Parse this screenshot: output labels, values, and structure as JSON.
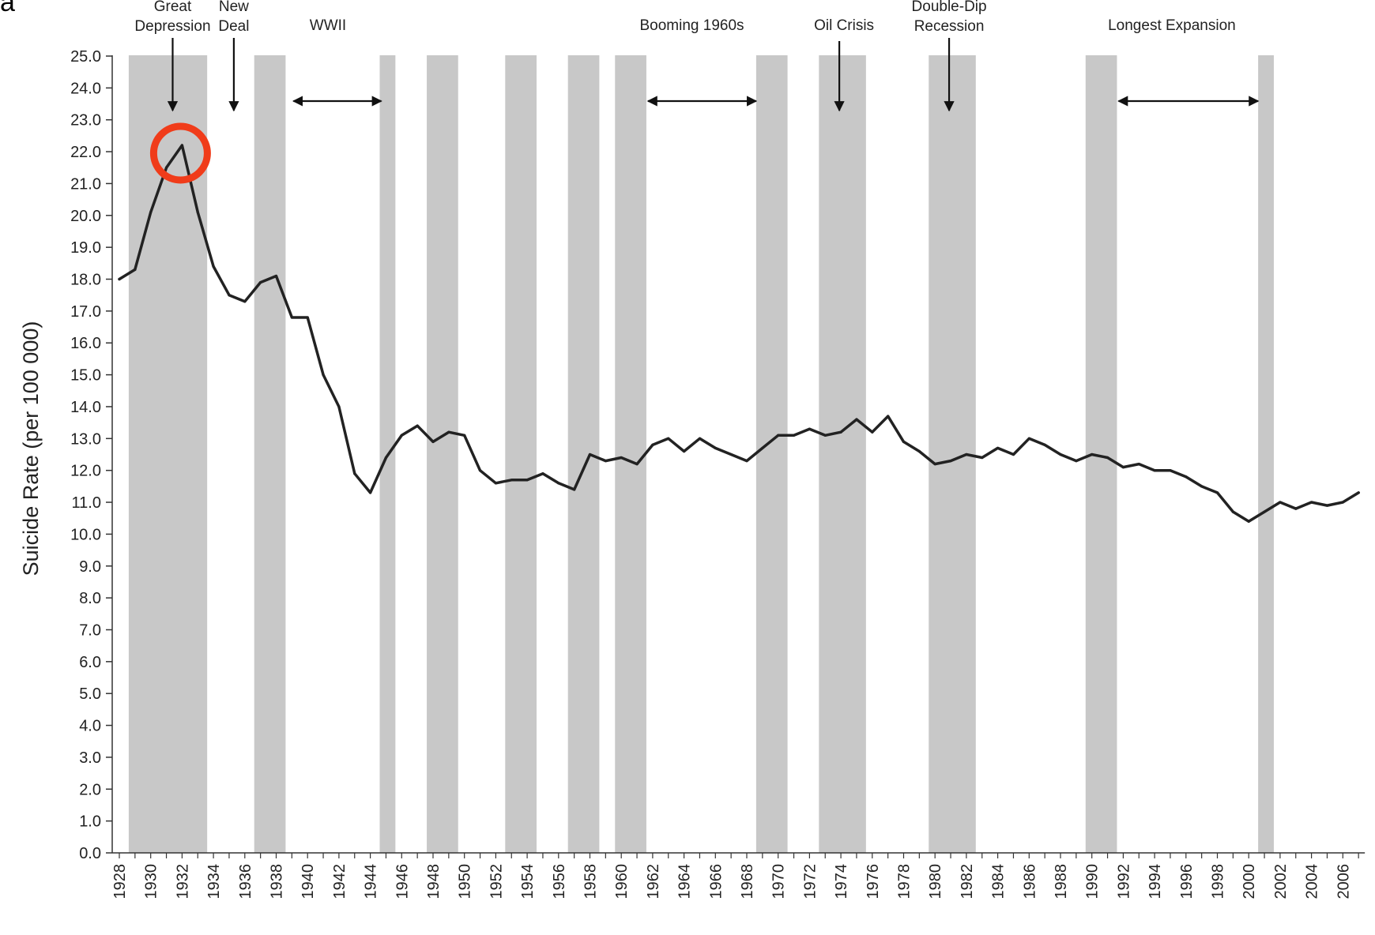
{
  "panel_label": "a",
  "chart_data": {
    "type": "line",
    "title": "",
    "xlabel": "",
    "ylabel": "Suicide Rate (per 100 000)",
    "xlim": [
      1928,
      2007
    ],
    "ylim": [
      0,
      25
    ],
    "y_ticks": [
      "0.0",
      "1.0",
      "2.0",
      "3.0",
      "4.0",
      "5.0",
      "6.0",
      "7.0",
      "8.0",
      "9.0",
      "10.0",
      "11.0",
      "12.0",
      "13.0",
      "14.0",
      "15.0",
      "16.0",
      "17.0",
      "18.0",
      "19.0",
      "20.0",
      "21.0",
      "22.0",
      "23.0",
      "24.0",
      "25.0"
    ],
    "x_ticks": [
      "1928",
      "1930",
      "1932",
      "1934",
      "1936",
      "1938",
      "1940",
      "1942",
      "1944",
      "1946",
      "1948",
      "1950",
      "1952",
      "1954",
      "1956",
      "1958",
      "1960",
      "1962",
      "1964",
      "1966",
      "1968",
      "1970",
      "1972",
      "1974",
      "1976",
      "1978",
      "1980",
      "1982",
      "1984",
      "1986",
      "1988",
      "1990",
      "1992",
      "1994",
      "1996",
      "1998",
      "2000",
      "2002",
      "2004",
      "2006"
    ],
    "grid": false,
    "line_color": "#222222",
    "recession_color": "#c8c8c8",
    "highlight_color": "#f03c1a",
    "recessions": [
      [
        1928.6,
        1933.6
      ],
      [
        1936.6,
        1938.6
      ],
      [
        1944.6,
        1945.6
      ],
      [
        1947.6,
        1949.6
      ],
      [
        1952.6,
        1954.6
      ],
      [
        1956.6,
        1958.6
      ],
      [
        1959.6,
        1961.6
      ],
      [
        1968.6,
        1970.6
      ],
      [
        1972.6,
        1975.6
      ],
      [
        1979.6,
        1982.6
      ],
      [
        1989.6,
        1991.6
      ],
      [
        2000.6,
        2001.6
      ]
    ],
    "series": [
      {
        "x": [
          1928,
          1929,
          1930,
          1931,
          1932,
          1933,
          1934,
          1935,
          1936,
          1937,
          1938,
          1939,
          1940,
          1941,
          1942,
          1943,
          1944,
          1945,
          1946,
          1947,
          1948,
          1949,
          1950,
          1951,
          1952,
          1953,
          1954,
          1955,
          1956,
          1957,
          1958,
          1959,
          1960,
          1961,
          1962,
          1963,
          1964,
          1965,
          1966,
          1967,
          1968,
          1969,
          1970,
          1971,
          1972,
          1973,
          1974,
          1975,
          1976,
          1977,
          1978,
          1979,
          1980,
          1981,
          1982,
          1983,
          1984,
          1985,
          1986,
          1987,
          1988,
          1989,
          1990,
          1991,
          1992,
          1993,
          1994,
          1995,
          1996,
          1997,
          1998,
          1999,
          2000,
          2001,
          2002,
          2003,
          2004,
          2005,
          2006,
          2007
        ],
        "values": [
          18.0,
          18.3,
          20.1,
          21.5,
          22.2,
          20.1,
          18.4,
          17.5,
          17.3,
          17.9,
          18.1,
          16.8,
          16.8,
          15.0,
          14.0,
          11.9,
          11.3,
          12.4,
          13.1,
          13.4,
          12.9,
          13.2,
          13.1,
          12.0,
          11.6,
          11.7,
          11.7,
          11.9,
          11.6,
          11.4,
          12.5,
          12.3,
          12.4,
          12.2,
          12.8,
          13.0,
          12.6,
          13.0,
          12.7,
          12.5,
          12.3,
          12.7,
          13.1,
          13.1,
          13.3,
          13.1,
          13.2,
          13.6,
          13.2,
          13.7,
          12.9,
          12.6,
          12.2,
          12.3,
          12.5,
          12.4,
          12.7,
          12.5,
          13.0,
          12.8,
          12.5,
          12.3,
          12.5,
          12.4,
          12.1,
          12.2,
          12.0,
          12.0,
          11.8,
          11.5,
          11.3,
          10.7,
          10.4,
          10.7,
          11.0,
          10.8,
          11.0,
          10.9,
          11.0,
          11.3
        ]
      }
    ],
    "highlight_point": [
      1932,
      22.2
    ],
    "annotations": [
      {
        "lines": [
          "Great",
          "Depression"
        ],
        "text_x": 1931.4,
        "arrow": "down",
        "ax": 1931.4
      },
      {
        "lines": [
          "New",
          "Deal"
        ],
        "text_x": 1935.3,
        "arrow": "down",
        "ax": 1935.3
      },
      {
        "lines": [
          "WWII"
        ],
        "text_x": 1941.3,
        "arrow": "double",
        "ax1": 1939.1,
        "ax2": 1944.7
      },
      {
        "lines": [
          "Booming 1960s"
        ],
        "text_x": 1964.5,
        "arrow": "double",
        "ax1": 1961.7,
        "ax2": 1968.6
      },
      {
        "lines": [
          "Oil Crisis"
        ],
        "text_x": 1974.2,
        "arrow": "down",
        "ax": 1973.9
      },
      {
        "lines": [
          "Double-Dip",
          "Recession"
        ],
        "text_x": 1980.9,
        "arrow": "down",
        "ax": 1980.9
      },
      {
        "lines": [
          "Longest Expansion"
        ],
        "text_x": 1995.1,
        "arrow": "double",
        "ax1": 1991.7,
        "ax2": 2000.6
      }
    ]
  }
}
